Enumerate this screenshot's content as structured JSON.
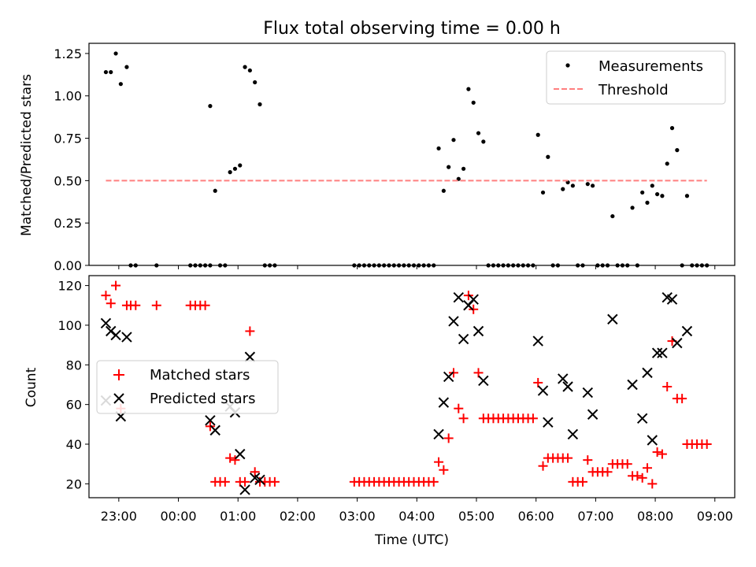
{
  "chart_data": [
    {
      "type": "scatter",
      "title": "Flux total observing time = 0.00 h",
      "ylabel": "Matched/Predicted stars",
      "xlabel": "",
      "xlim": [
        "22:30",
        "09:20"
      ],
      "ylim": [
        0,
        1.31
      ],
      "yticks": [
        0.0,
        0.25,
        0.5,
        0.75,
        1.0,
        1.25
      ],
      "ytick_labels": [
        "0.00",
        "0.25",
        "0.50",
        "0.75",
        "1.00",
        "1.25"
      ],
      "xticks": [
        "23:00",
        "00:00",
        "01:00",
        "02:00",
        "03:00",
        "04:00",
        "05:00",
        "06:00",
        "07:00",
        "08:00",
        "09:00"
      ],
      "show_xtick_labels": false,
      "legend_position": "top-right",
      "series": [
        {
          "name": "Measurements",
          "kind": "dots",
          "color": "#000000",
          "points": [
            [
              "22:47",
              1.14
            ],
            [
              "22:52",
              1.14
            ],
            [
              "22:57",
              1.25
            ],
            [
              "23:02",
              1.07
            ],
            [
              "23:08",
              1.17
            ],
            [
              "23:12",
              0.0
            ],
            [
              "23:17",
              0.0
            ],
            [
              "23:38",
              0.0
            ],
            [
              "00:12",
              0.0
            ],
            [
              "00:17",
              0.0
            ],
            [
              "00:22",
              0.0
            ],
            [
              "00:27",
              0.0
            ],
            [
              "00:32",
              0.0
            ],
            [
              "00:32",
              0.94
            ],
            [
              "00:37",
              0.44
            ],
            [
              "00:42",
              0.0
            ],
            [
              "00:47",
              0.0
            ],
            [
              "00:52",
              0.55
            ],
            [
              "00:57",
              0.57
            ],
            [
              "01:02",
              0.59
            ],
            [
              "01:07",
              1.17
            ],
            [
              "01:12",
              1.15
            ],
            [
              "01:17",
              1.08
            ],
            [
              "01:22",
              0.95
            ],
            [
              "01:27",
              0.0
            ],
            [
              "01:32",
              0.0
            ],
            [
              "01:37",
              0.0
            ],
            [
              "02:57",
              0.0
            ],
            [
              "03:02",
              0.0
            ],
            [
              "03:07",
              0.0
            ],
            [
              "03:12",
              0.0
            ],
            [
              "03:17",
              0.0
            ],
            [
              "03:22",
              0.0
            ],
            [
              "03:27",
              0.0
            ],
            [
              "03:32",
              0.0
            ],
            [
              "03:37",
              0.0
            ],
            [
              "03:42",
              0.0
            ],
            [
              "03:47",
              0.0
            ],
            [
              "03:52",
              0.0
            ],
            [
              "03:57",
              0.0
            ],
            [
              "04:02",
              0.0
            ],
            [
              "04:07",
              0.0
            ],
            [
              "04:12",
              0.0
            ],
            [
              "04:17",
              0.0
            ],
            [
              "04:22",
              0.69
            ],
            [
              "04:27",
              0.44
            ],
            [
              "04:32",
              0.58
            ],
            [
              "04:37",
              0.74
            ],
            [
              "04:42",
              0.51
            ],
            [
              "04:47",
              0.57
            ],
            [
              "04:52",
              1.04
            ],
            [
              "04:57",
              0.96
            ],
            [
              "05:02",
              0.78
            ],
            [
              "05:07",
              0.73
            ],
            [
              "05:12",
              0.0
            ],
            [
              "05:17",
              0.0
            ],
            [
              "05:22",
              0.0
            ],
            [
              "05:27",
              0.0
            ],
            [
              "05:32",
              0.0
            ],
            [
              "05:37",
              0.0
            ],
            [
              "05:42",
              0.0
            ],
            [
              "05:47",
              0.0
            ],
            [
              "05:52",
              0.0
            ],
            [
              "05:57",
              0.0
            ],
            [
              "06:02",
              0.77
            ],
            [
              "06:07",
              0.43
            ],
            [
              "06:12",
              0.64
            ],
            [
              "06:17",
              0.0
            ],
            [
              "06:22",
              0.0
            ],
            [
              "06:27",
              0.45
            ],
            [
              "06:32",
              0.49
            ],
            [
              "06:37",
              0.47
            ],
            [
              "06:42",
              0.0
            ],
            [
              "06:47",
              0.0
            ],
            [
              "06:52",
              0.48
            ],
            [
              "06:57",
              0.47
            ],
            [
              "07:02",
              0.0
            ],
            [
              "07:07",
              0.0
            ],
            [
              "07:12",
              0.0
            ],
            [
              "07:17",
              0.29
            ],
            [
              "07:22",
              0.0
            ],
            [
              "07:27",
              0.0
            ],
            [
              "07:32",
              0.0
            ],
            [
              "07:37",
              0.34
            ],
            [
              "07:42",
              0.0
            ],
            [
              "07:47",
              0.43
            ],
            [
              "07:52",
              0.37
            ],
            [
              "07:57",
              0.47
            ],
            [
              "08:02",
              0.42
            ],
            [
              "08:07",
              0.41
            ],
            [
              "08:12",
              0.6
            ],
            [
              "08:17",
              0.81
            ],
            [
              "08:22",
              0.68
            ],
            [
              "08:27",
              0.0
            ],
            [
              "08:32",
              0.41
            ],
            [
              "08:37",
              0.0
            ],
            [
              "08:42",
              0.0
            ],
            [
              "08:47",
              0.0
            ],
            [
              "08:52",
              0.0
            ]
          ]
        },
        {
          "name": "Threshold",
          "kind": "dashed-line",
          "color": "#ff7f7f",
          "points": [
            [
              "22:47",
              0.5
            ],
            [
              "08:52",
              0.5
            ]
          ]
        }
      ]
    },
    {
      "type": "scatter",
      "title": "",
      "ylabel": "Count",
      "xlabel": "Time (UTC)",
      "xlim": [
        "22:30",
        "09:20"
      ],
      "ylim": [
        13,
        125
      ],
      "yticks": [
        20,
        40,
        60,
        80,
        100,
        120
      ],
      "ytick_labels": [
        "20",
        "40",
        "60",
        "80",
        "100",
        "120"
      ],
      "xticks": [
        "23:00",
        "00:00",
        "01:00",
        "02:00",
        "03:00",
        "04:00",
        "05:00",
        "06:00",
        "07:00",
        "08:00",
        "09:00"
      ],
      "xtick_labels": [
        "23:00",
        "00:00",
        "01:00",
        "02:00",
        "03:00",
        "04:00",
        "05:00",
        "06:00",
        "07:00",
        "08:00",
        "09:00"
      ],
      "show_xtick_labels": true,
      "legend_position": "center-left",
      "series": [
        {
          "name": "Matched stars",
          "kind": "plus",
          "color": "#ff0000",
          "points": [
            [
              "22:47",
              115
            ],
            [
              "22:52",
              111
            ],
            [
              "22:57",
              120
            ],
            [
              "23:02",
              58
            ],
            [
              "23:08",
              110
            ],
            [
              "23:12",
              110
            ],
            [
              "23:17",
              110
            ],
            [
              "23:38",
              110
            ],
            [
              "00:12",
              110
            ],
            [
              "00:17",
              110
            ],
            [
              "00:22",
              110
            ],
            [
              "00:27",
              110
            ],
            [
              "00:32",
              49
            ],
            [
              "00:37",
              21
            ],
            [
              "00:42",
              21
            ],
            [
              "00:47",
              21
            ],
            [
              "00:52",
              33
            ],
            [
              "00:57",
              32
            ],
            [
              "01:02",
              21
            ],
            [
              "01:07",
              21
            ],
            [
              "01:12",
              97
            ],
            [
              "01:17",
              26
            ],
            [
              "01:22",
              21
            ],
            [
              "01:27",
              21
            ],
            [
              "01:32",
              21
            ],
            [
              "01:37",
              21
            ],
            [
              "02:57",
              21
            ],
            [
              "03:02",
              21
            ],
            [
              "03:07",
              21
            ],
            [
              "03:12",
              21
            ],
            [
              "03:17",
              21
            ],
            [
              "03:22",
              21
            ],
            [
              "03:27",
              21
            ],
            [
              "03:32",
              21
            ],
            [
              "03:37",
              21
            ],
            [
              "03:42",
              21
            ],
            [
              "03:47",
              21
            ],
            [
              "03:52",
              21
            ],
            [
              "03:57",
              21
            ],
            [
              "04:02",
              21
            ],
            [
              "04:07",
              21
            ],
            [
              "04:12",
              21
            ],
            [
              "04:17",
              21
            ],
            [
              "04:22",
              31
            ],
            [
              "04:27",
              27
            ],
            [
              "04:32",
              43
            ],
            [
              "04:37",
              76
            ],
            [
              "04:42",
              58
            ],
            [
              "04:47",
              53
            ],
            [
              "04:52",
              115
            ],
            [
              "04:57",
              108
            ],
            [
              "05:02",
              76
            ],
            [
              "05:07",
              53
            ],
            [
              "05:12",
              53
            ],
            [
              "05:17",
              53
            ],
            [
              "05:22",
              53
            ],
            [
              "05:27",
              53
            ],
            [
              "05:32",
              53
            ],
            [
              "05:37",
              53
            ],
            [
              "05:42",
              53
            ],
            [
              "05:47",
              53
            ],
            [
              "05:52",
              53
            ],
            [
              "05:57",
              53
            ],
            [
              "06:02",
              71
            ],
            [
              "06:07",
              29
            ],
            [
              "06:12",
              33
            ],
            [
              "06:17",
              33
            ],
            [
              "06:22",
              33
            ],
            [
              "06:27",
              33
            ],
            [
              "06:32",
              33
            ],
            [
              "06:37",
              21
            ],
            [
              "06:42",
              21
            ],
            [
              "06:47",
              21
            ],
            [
              "06:52",
              32
            ],
            [
              "06:57",
              26
            ],
            [
              "07:02",
              26
            ],
            [
              "07:07",
              26
            ],
            [
              "07:12",
              26
            ],
            [
              "07:17",
              30
            ],
            [
              "07:22",
              30
            ],
            [
              "07:27",
              30
            ],
            [
              "07:32",
              30
            ],
            [
              "07:37",
              24
            ],
            [
              "07:42",
              24
            ],
            [
              "07:47",
              23
            ],
            [
              "07:52",
              28
            ],
            [
              "07:57",
              20
            ],
            [
              "08:02",
              36
            ],
            [
              "08:07",
              35
            ],
            [
              "08:12",
              69
            ],
            [
              "08:17",
              92
            ],
            [
              "08:22",
              63
            ],
            [
              "08:27",
              63
            ],
            [
              "08:32",
              40
            ],
            [
              "08:37",
              40
            ],
            [
              "08:42",
              40
            ],
            [
              "08:47",
              40
            ],
            [
              "08:52",
              40
            ]
          ]
        },
        {
          "name": "Predicted stars",
          "kind": "x",
          "color": "#000000",
          "points": [
            [
              "22:47",
              101
            ],
            [
              "22:47",
              62
            ],
            [
              "22:52",
              97
            ],
            [
              "22:57",
              95
            ],
            [
              "23:02",
              54
            ],
            [
              "23:08",
              94
            ],
            [
              "00:32",
              52
            ],
            [
              "00:37",
              47
            ],
            [
              "00:52",
              59
            ],
            [
              "00:57",
              56
            ],
            [
              "01:02",
              35
            ],
            [
              "01:07",
              17
            ],
            [
              "01:12",
              84
            ],
            [
              "01:17",
              23
            ],
            [
              "01:22",
              22
            ],
            [
              "04:22",
              45
            ],
            [
              "04:27",
              61
            ],
            [
              "04:32",
              74
            ],
            [
              "04:37",
              102
            ],
            [
              "04:42",
              114
            ],
            [
              "04:47",
              93
            ],
            [
              "04:52",
              110
            ],
            [
              "04:57",
              113
            ],
            [
              "05:02",
              97
            ],
            [
              "05:07",
              72
            ],
            [
              "06:02",
              92
            ],
            [
              "06:07",
              67
            ],
            [
              "06:12",
              51
            ],
            [
              "06:27",
              73
            ],
            [
              "06:32",
              69
            ],
            [
              "06:37",
              45
            ],
            [
              "06:52",
              66
            ],
            [
              "06:57",
              55
            ],
            [
              "07:17",
              103
            ],
            [
              "07:37",
              70
            ],
            [
              "07:47",
              53
            ],
            [
              "07:52",
              76
            ],
            [
              "07:57",
              42
            ],
            [
              "08:02",
              86
            ],
            [
              "08:07",
              86
            ],
            [
              "08:12",
              114
            ],
            [
              "08:17",
              113
            ],
            [
              "08:22",
              91
            ],
            [
              "08:32",
              97
            ]
          ]
        }
      ]
    }
  ]
}
